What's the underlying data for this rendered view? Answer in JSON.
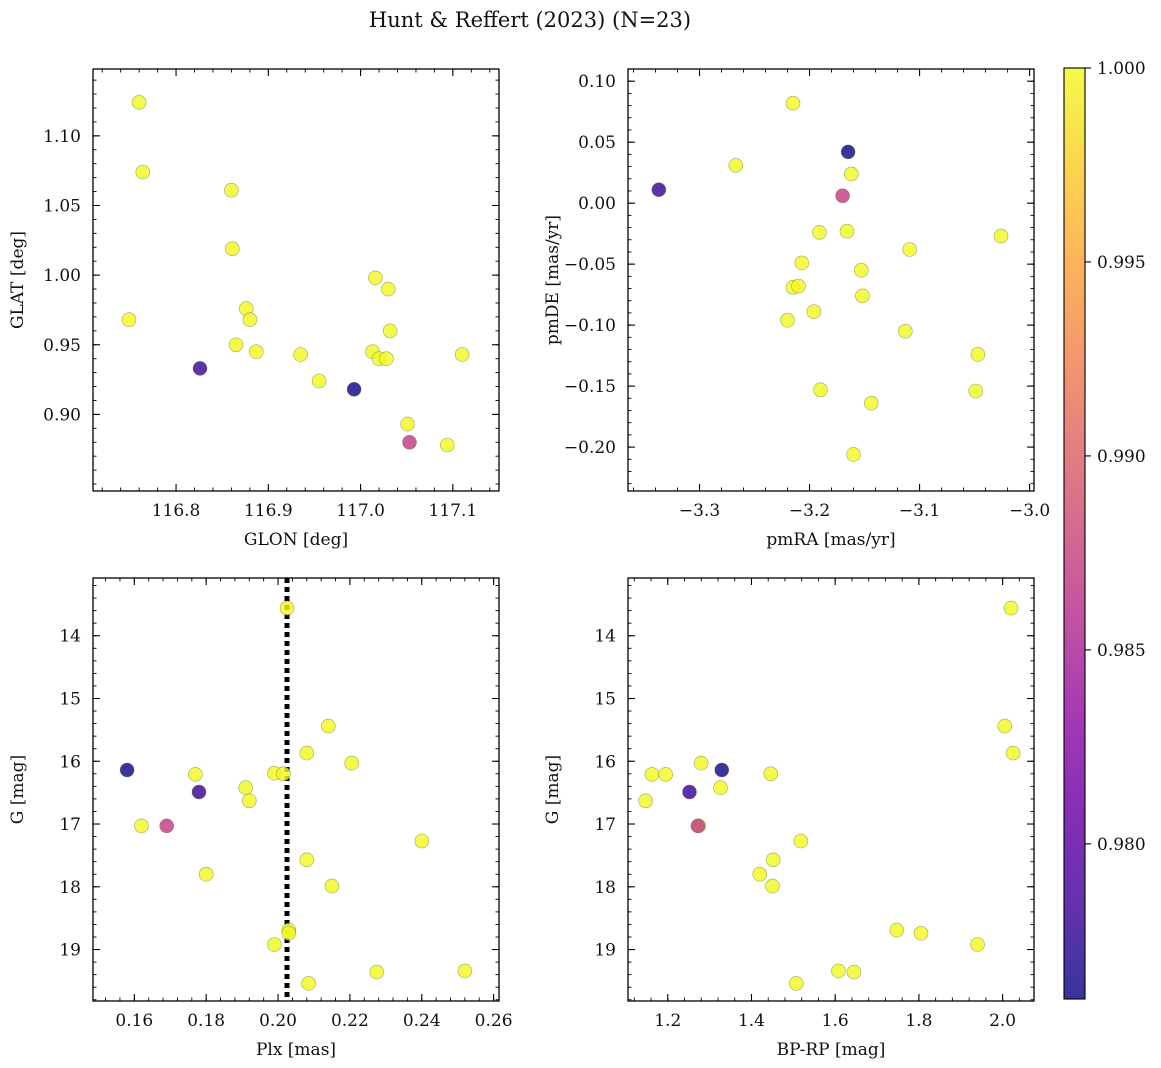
{
  "figure": {
    "title": "Hunt & Reffert (2023) (N=23)",
    "colorbar": {
      "cmap": "plasma",
      "range": [
        0.976,
        1.0
      ],
      "ticks": [
        0.98,
        0.985,
        0.99,
        0.995,
        1.0
      ],
      "tick_labels": [
        "0.980",
        "0.985",
        "0.990",
        "0.995",
        "1.000"
      ]
    }
  },
  "chart_data": [
    {
      "type": "scatter",
      "id": "glon-glat",
      "xlabel": "GLON [deg]",
      "ylabel": "GLAT [deg]",
      "xlim": [
        116.71,
        117.15
      ],
      "ylim": [
        0.845,
        1.148
      ],
      "xticks": [
        116.8,
        116.9,
        117.0,
        117.1
      ],
      "xtick_labels": [
        "116.8",
        "116.9",
        "117.0",
        "117.1"
      ],
      "yticks": [
        0.9,
        0.95,
        1.0,
        1.05,
        1.1
      ],
      "ytick_labels": [
        "0.90",
        "0.95",
        "1.00",
        "1.05",
        "1.10"
      ],
      "points": [
        {
          "x": 116.76,
          "y": 1.124,
          "c": 1.0
        },
        {
          "x": 116.764,
          "y": 1.074,
          "c": 1.0
        },
        {
          "x": 116.749,
          "y": 0.968,
          "c": 1.0
        },
        {
          "x": 116.826,
          "y": 0.933,
          "c": 0.978
        },
        {
          "x": 116.86,
          "y": 1.061,
          "c": 1.0
        },
        {
          "x": 116.861,
          "y": 1.019,
          "c": 1.0
        },
        {
          "x": 116.876,
          "y": 0.976,
          "c": 1.0
        },
        {
          "x": 116.88,
          "y": 0.968,
          "c": 1.0
        },
        {
          "x": 116.865,
          "y": 0.95,
          "c": 1.0
        },
        {
          "x": 116.887,
          "y": 0.945,
          "c": 1.0
        },
        {
          "x": 116.935,
          "y": 0.943,
          "c": 1.0
        },
        {
          "x": 116.955,
          "y": 0.924,
          "c": 1.0
        },
        {
          "x": 116.993,
          "y": 0.918,
          "c": 0.976
        },
        {
          "x": 117.016,
          "y": 0.998,
          "c": 1.0
        },
        {
          "x": 117.03,
          "y": 0.99,
          "c": 1.0
        },
        {
          "x": 117.032,
          "y": 0.96,
          "c": 1.0
        },
        {
          "x": 117.013,
          "y": 0.945,
          "c": 1.0
        },
        {
          "x": 117.02,
          "y": 0.94,
          "c": 1.0
        },
        {
          "x": 117.028,
          "y": 0.94,
          "c": 1.0
        },
        {
          "x": 117.051,
          "y": 0.893,
          "c": 1.0
        },
        {
          "x": 117.053,
          "y": 0.88,
          "c": 0.987
        },
        {
          "x": 117.094,
          "y": 0.878,
          "c": 1.0
        },
        {
          "x": 117.11,
          "y": 0.943,
          "c": 1.0
        }
      ]
    },
    {
      "type": "scatter",
      "id": "pmra-pmde",
      "xlabel": "pmRA [mas/yr]",
      "ylabel": "pmDE [mas/yr]",
      "xlim": [
        -3.365,
        -2.996
      ],
      "ylim": [
        -0.236,
        0.11
      ],
      "xticks": [
        -3.3,
        -3.2,
        -3.1,
        -3.0
      ],
      "xtick_labels": [
        "−3.3",
        "−3.2",
        "−3.1",
        "−3.0"
      ],
      "yticks": [
        -0.2,
        -0.15,
        -0.1,
        -0.05,
        0.0,
        0.05,
        0.1
      ],
      "ytick_labels": [
        "−0.20",
        "−0.15",
        "−0.10",
        "−0.05",
        "0.00",
        "0.05",
        "0.10"
      ],
      "points": [
        {
          "x": -3.337,
          "y": 0.011,
          "c": 0.978
        },
        {
          "x": -3.267,
          "y": 0.031,
          "c": 1.0
        },
        {
          "x": -3.215,
          "y": 0.082,
          "c": 1.0
        },
        {
          "x": -3.165,
          "y": 0.042,
          "c": 0.976
        },
        {
          "x": -3.17,
          "y": 0.006,
          "c": 0.987
        },
        {
          "x": -3.162,
          "y": 0.024,
          "c": 1.0
        },
        {
          "x": -3.191,
          "y": -0.024,
          "c": 1.0
        },
        {
          "x": -3.166,
          "y": -0.023,
          "c": 1.0
        },
        {
          "x": -3.207,
          "y": -0.049,
          "c": 1.0
        },
        {
          "x": -3.215,
          "y": -0.069,
          "c": 1.0
        },
        {
          "x": -3.21,
          "y": -0.068,
          "c": 1.0
        },
        {
          "x": -3.196,
          "y": -0.089,
          "c": 1.0
        },
        {
          "x": -3.22,
          "y": -0.096,
          "c": 1.0
        },
        {
          "x": -3.153,
          "y": -0.055,
          "c": 1.0
        },
        {
          "x": -3.152,
          "y": -0.076,
          "c": 1.0
        },
        {
          "x": -3.109,
          "y": -0.038,
          "c": 1.0
        },
        {
          "x": -3.113,
          "y": -0.105,
          "c": 1.0
        },
        {
          "x": -3.026,
          "y": -0.027,
          "c": 1.0
        },
        {
          "x": -3.047,
          "y": -0.124,
          "c": 1.0
        },
        {
          "x": -3.049,
          "y": -0.154,
          "c": 1.0
        },
        {
          "x": -3.19,
          "y": -0.153,
          "c": 1.0
        },
        {
          "x": -3.144,
          "y": -0.164,
          "c": 1.0
        },
        {
          "x": -3.16,
          "y": -0.206,
          "c": 1.0
        }
      ]
    },
    {
      "type": "scatter",
      "id": "plx-g",
      "xlabel": "Plx [mas]",
      "ylabel": "G [mag]",
      "xlim": [
        0.1485,
        0.2615
      ],
      "ylim": [
        19.82,
        13.08
      ],
      "y_inverted": true,
      "vline": 0.2025,
      "xticks": [
        0.16,
        0.18,
        0.2,
        0.22,
        0.24,
        0.26
      ],
      "xtick_labels": [
        "0.16",
        "0.18",
        "0.20",
        "0.22",
        "0.24",
        "0.26"
      ],
      "yticks": [
        14,
        15,
        16,
        17,
        18,
        19
      ],
      "ytick_labels": [
        "14",
        "15",
        "16",
        "17",
        "18",
        "19"
      ],
      "points": [
        {
          "x": 0.2025,
          "y": 13.56,
          "c": 1.0
        },
        {
          "x": 0.158,
          "y": 16.14,
          "c": 0.976
        },
        {
          "x": 0.162,
          "y": 17.03,
          "c": 1.0
        },
        {
          "x": 0.169,
          "y": 17.03,
          "c": 0.987
        },
        {
          "x": 0.178,
          "y": 16.49,
          "c": 0.978
        },
        {
          "x": 0.177,
          "y": 16.21,
          "c": 1.0
        },
        {
          "x": 0.18,
          "y": 17.8,
          "c": 1.0
        },
        {
          "x": 0.191,
          "y": 16.42,
          "c": 1.0
        },
        {
          "x": 0.192,
          "y": 16.63,
          "c": 1.0
        },
        {
          "x": 0.199,
          "y": 16.19,
          "c": 1.0
        },
        {
          "x": 0.2015,
          "y": 16.2,
          "c": 1.0
        },
        {
          "x": 0.199,
          "y": 18.92,
          "c": 1.0
        },
        {
          "x": 0.203,
          "y": 18.69,
          "c": 1.0
        },
        {
          "x": 0.203,
          "y": 18.74,
          "c": 1.0
        },
        {
          "x": 0.208,
          "y": 15.87,
          "c": 1.0
        },
        {
          "x": 0.208,
          "y": 17.57,
          "c": 1.0
        },
        {
          "x": 0.2085,
          "y": 19.54,
          "c": 1.0
        },
        {
          "x": 0.214,
          "y": 15.44,
          "c": 1.0
        },
        {
          "x": 0.215,
          "y": 17.99,
          "c": 1.0
        },
        {
          "x": 0.2205,
          "y": 16.03,
          "c": 1.0
        },
        {
          "x": 0.2275,
          "y": 19.36,
          "c": 1.0
        },
        {
          "x": 0.24,
          "y": 17.27,
          "c": 1.0
        },
        {
          "x": 0.252,
          "y": 19.34,
          "c": 1.0
        }
      ]
    },
    {
      "type": "scatter",
      "id": "bprp-g",
      "xlabel": "BP-RP [mag]",
      "ylabel": "G [mag]",
      "xlim": [
        1.105,
        2.075
      ],
      "ylim": [
        19.82,
        13.08
      ],
      "y_inverted": true,
      "xticks": [
        1.2,
        1.4,
        1.6,
        1.8,
        2.0
      ],
      "xtick_labels": [
        "1.2",
        "1.4",
        "1.6",
        "1.8",
        "2.0"
      ],
      "yticks": [
        14,
        15,
        16,
        17,
        18,
        19
      ],
      "ytick_labels": [
        "14",
        "15",
        "16",
        "17",
        "18",
        "19"
      ],
      "points": [
        {
          "x": 1.147,
          "y": 16.63,
          "c": 1.0
        },
        {
          "x": 1.162,
          "y": 16.21,
          "c": 1.0
        },
        {
          "x": 1.195,
          "y": 16.21,
          "c": 1.0
        },
        {
          "x": 1.252,
          "y": 16.49,
          "c": 0.978
        },
        {
          "x": 1.272,
          "y": 17.03,
          "c": 0.987
        },
        {
          "x": 1.274,
          "y": 17.03,
          "c": 1.0
        },
        {
          "x": 1.28,
          "y": 16.03,
          "c": 1.0
        },
        {
          "x": 1.329,
          "y": 16.14,
          "c": 0.976
        },
        {
          "x": 1.326,
          "y": 16.42,
          "c": 1.0
        },
        {
          "x": 1.42,
          "y": 17.8,
          "c": 1.0
        },
        {
          "x": 1.446,
          "y": 16.2,
          "c": 1.0
        },
        {
          "x": 1.45,
          "y": 17.99,
          "c": 1.0
        },
        {
          "x": 1.452,
          "y": 17.57,
          "c": 1.0
        },
        {
          "x": 1.518,
          "y": 17.27,
          "c": 1.0
        },
        {
          "x": 1.507,
          "y": 19.54,
          "c": 1.0
        },
        {
          "x": 1.608,
          "y": 19.34,
          "c": 1.0
        },
        {
          "x": 1.645,
          "y": 19.36,
          "c": 1.0
        },
        {
          "x": 1.747,
          "y": 18.69,
          "c": 1.0
        },
        {
          "x": 1.805,
          "y": 18.74,
          "c": 1.0
        },
        {
          "x": 1.94,
          "y": 18.92,
          "c": 1.0
        },
        {
          "x": 2.005,
          "y": 15.44,
          "c": 1.0
        },
        {
          "x": 2.025,
          "y": 15.87,
          "c": 1.0
        },
        {
          "x": 2.02,
          "y": 13.56,
          "c": 1.0
        }
      ]
    }
  ]
}
